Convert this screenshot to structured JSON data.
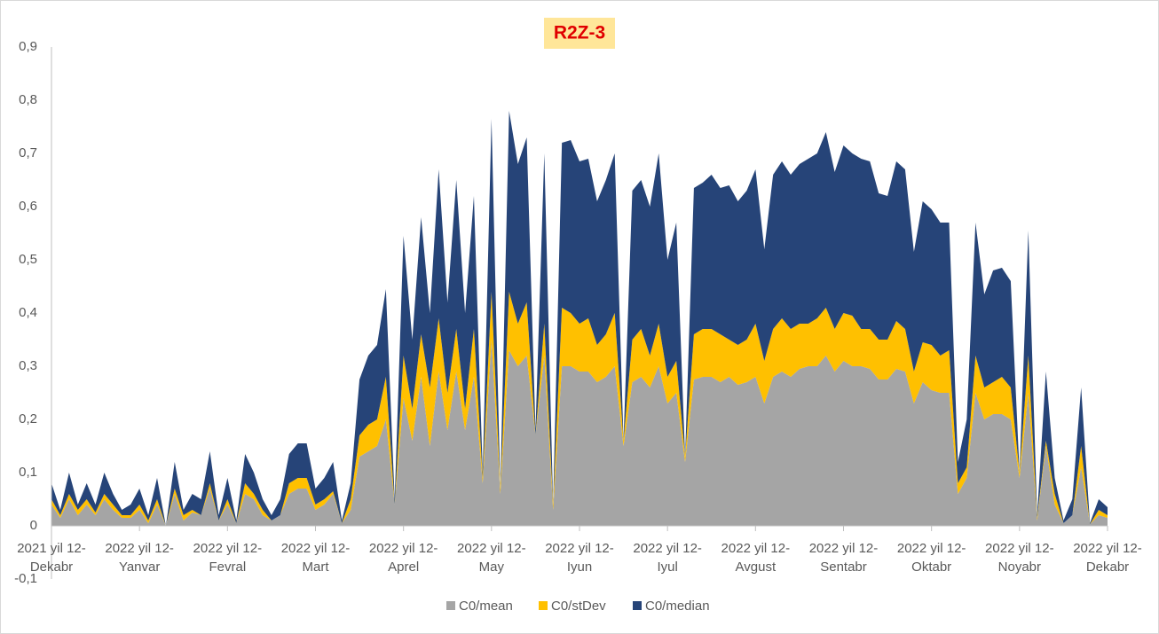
{
  "chart_data": {
    "type": "stacked_area",
    "title": "R2Z-3",
    "categories": [
      "2021 yil 12-\nDekabr",
      null,
      null,
      null,
      null,
      null,
      null,
      null,
      null,
      null,
      "2022 yil 12-\nYanvar",
      null,
      null,
      null,
      null,
      null,
      null,
      null,
      null,
      null,
      "2022 yil 12-\nFevral",
      null,
      null,
      null,
      null,
      null,
      null,
      null,
      null,
      null,
      "2022 yil 12-\nMart",
      null,
      null,
      null,
      null,
      null,
      null,
      null,
      null,
      null,
      "2022 yil 12-\nAprel",
      null,
      null,
      null,
      null,
      null,
      null,
      null,
      null,
      null,
      "2022 yil 12-\nMay",
      null,
      null,
      null,
      null,
      null,
      null,
      null,
      null,
      null,
      "2022 yil 12-\nIyun",
      null,
      null,
      null,
      null,
      null,
      null,
      null,
      null,
      null,
      "2022 yil 12-\nIyul",
      null,
      null,
      null,
      null,
      null,
      null,
      null,
      null,
      null,
      "2022 yil 12-\nAvgust",
      null,
      null,
      null,
      null,
      null,
      null,
      null,
      null,
      null,
      "2022 yil 12-\nSentabr",
      null,
      null,
      null,
      null,
      null,
      null,
      null,
      null,
      null,
      "2022 yil 12-\nOktabr",
      null,
      null,
      null,
      null,
      null,
      null,
      null,
      null,
      null,
      "2022 yil 12-\nNoyabr",
      null,
      null,
      null,
      null,
      null,
      null,
      null,
      null,
      null,
      "2022 yil 12-\nDekabr"
    ],
    "series": [
      {
        "name": "C0/mean",
        "color": "#a5a5a5",
        "values": [
          0.04,
          0.015,
          0.05,
          0.02,
          0.04,
          0.02,
          0.05,
          0.03,
          0.015,
          0.015,
          0.03,
          0.005,
          0.04,
          0,
          0.06,
          0.01,
          0.025,
          0.02,
          0.07,
          0.01,
          0.04,
          0.005,
          0.06,
          0.05,
          0.02,
          0.01,
          0.02,
          0.06,
          0.07,
          0.07,
          0.03,
          0.04,
          0.06,
          0.005,
          0.03,
          0.13,
          0.14,
          0.15,
          0.2,
          0.04,
          0.24,
          0.16,
          0.28,
          0.15,
          0.29,
          0.18,
          0.29,
          0.18,
          0.28,
          0.08,
          0.35,
          0.06,
          0.33,
          0.3,
          0.32,
          0.17,
          0.32,
          0.03,
          0.3,
          0.3,
          0.29,
          0.29,
          0.27,
          0.28,
          0.3,
          0.15,
          0.27,
          0.28,
          0.26,
          0.3,
          0.23,
          0.25,
          0.12,
          0.275,
          0.28,
          0.28,
          0.27,
          0.28,
          0.265,
          0.27,
          0.28,
          0.23,
          0.28,
          0.29,
          0.28,
          0.295,
          0.3,
          0.3,
          0.32,
          0.29,
          0.31,
          0.3,
          0.3,
          0.295,
          0.275,
          0.275,
          0.295,
          0.29,
          0.23,
          0.27,
          0.255,
          0.25,
          0.25,
          0.06,
          0.09,
          0.25,
          0.2,
          0.21,
          0.21,
          0.2,
          0.09,
          0.25,
          0.01,
          0.15,
          0.04,
          0.005,
          0.02,
          0.11,
          0.003,
          0.02,
          0.015
        ]
      },
      {
        "name": "C0/stDev",
        "color": "#ffc000",
        "values": [
          0.01,
          0.005,
          0.01,
          0.01,
          0.01,
          0.005,
          0.01,
          0.01,
          0.005,
          0.005,
          0.01,
          0.005,
          0.01,
          0,
          0.01,
          0.01,
          0.005,
          0,
          0.01,
          0,
          0.01,
          0,
          0.02,
          0.01,
          0.01,
          0,
          0,
          0.02,
          0.02,
          0.02,
          0.01,
          0.01,
          0.005,
          0,
          0.02,
          0.04,
          0.05,
          0.05,
          0.08,
          0,
          0.08,
          0.06,
          0.08,
          0.11,
          0.1,
          0.07,
          0.08,
          0.04,
          0.09,
          0.01,
          0.09,
          0.01,
          0.11,
          0.08,
          0.1,
          0,
          0.06,
          0.01,
          0.11,
          0.1,
          0.09,
          0.1,
          0.07,
          0.08,
          0.1,
          0.01,
          0.08,
          0.09,
          0.06,
          0.08,
          0.05,
          0.06,
          0.01,
          0.085,
          0.09,
          0.09,
          0.09,
          0.07,
          0.075,
          0.08,
          0.1,
          0.08,
          0.09,
          0.1,
          0.09,
          0.085,
          0.08,
          0.09,
          0.09,
          0.08,
          0.09,
          0.095,
          0.07,
          0.075,
          0.075,
          0.075,
          0.09,
          0.08,
          0.06,
          0.075,
          0.085,
          0.07,
          0.08,
          0.02,
          0.02,
          0.07,
          0.06,
          0.06,
          0.07,
          0.06,
          0.01,
          0.07,
          0.005,
          0.01,
          0.02,
          0,
          0,
          0.04,
          0,
          0.01,
          0.005
        ]
      },
      {
        "name": "C0/median",
        "color": "#264478",
        "values": [
          0.03,
          0.01,
          0.04,
          0.01,
          0.03,
          0.015,
          0.04,
          0.02,
          0.01,
          0.02,
          0.03,
          0.01,
          0.04,
          0,
          0.05,
          0.01,
          0.03,
          0.03,
          0.06,
          0.01,
          0.04,
          0.005,
          0.055,
          0.04,
          0.02,
          0.01,
          0.03,
          0.055,
          0.065,
          0.065,
          0.03,
          0.04,
          0.055,
          0.005,
          0.03,
          0.105,
          0.13,
          0.14,
          0.165,
          0.01,
          0.225,
          0.13,
          0.22,
          0.14,
          0.28,
          0.17,
          0.28,
          0.18,
          0.25,
          0.01,
          0.325,
          0,
          0.34,
          0.3,
          0.31,
          0.01,
          0.32,
          0,
          0.31,
          0.325,
          0.305,
          0.3,
          0.27,
          0.29,
          0.3,
          0,
          0.28,
          0.28,
          0.28,
          0.32,
          0.22,
          0.26,
          0,
          0.275,
          0.275,
          0.29,
          0.275,
          0.29,
          0.27,
          0.28,
          0.29,
          0.21,
          0.29,
          0.295,
          0.29,
          0.3,
          0.31,
          0.31,
          0.33,
          0.295,
          0.315,
          0.305,
          0.32,
          0.315,
          0.275,
          0.27,
          0.3,
          0.3,
          0.225,
          0.265,
          0.255,
          0.25,
          0.24,
          0.04,
          0.09,
          0.25,
          0.175,
          0.21,
          0.205,
          0.2,
          0,
          0.235,
          0.005,
          0.13,
          0.03,
          0.005,
          0.03,
          0.11,
          0.002,
          0.02,
          0.015
        ]
      }
    ],
    "ylim": [
      -0.1,
      0.9
    ],
    "yticks": [
      {
        "value": -0.1,
        "label": "-0,1"
      },
      0,
      {
        "value": 0.1,
        "label": "0,1"
      },
      {
        "value": 0.2,
        "label": "0,2"
      },
      {
        "value": 0.3,
        "label": "0,3"
      },
      {
        "value": 0.4,
        "label": "0,4"
      },
      {
        "value": 0.5,
        "label": "0,5"
      },
      {
        "value": 0.6,
        "label": "0,6"
      },
      {
        "value": 0.7,
        "label": "0,7"
      },
      {
        "value": 0.8,
        "label": "0,8"
      },
      {
        "value": 0.9,
        "label": "0,9"
      }
    ],
    "grid": false,
    "legend": "bottom"
  }
}
